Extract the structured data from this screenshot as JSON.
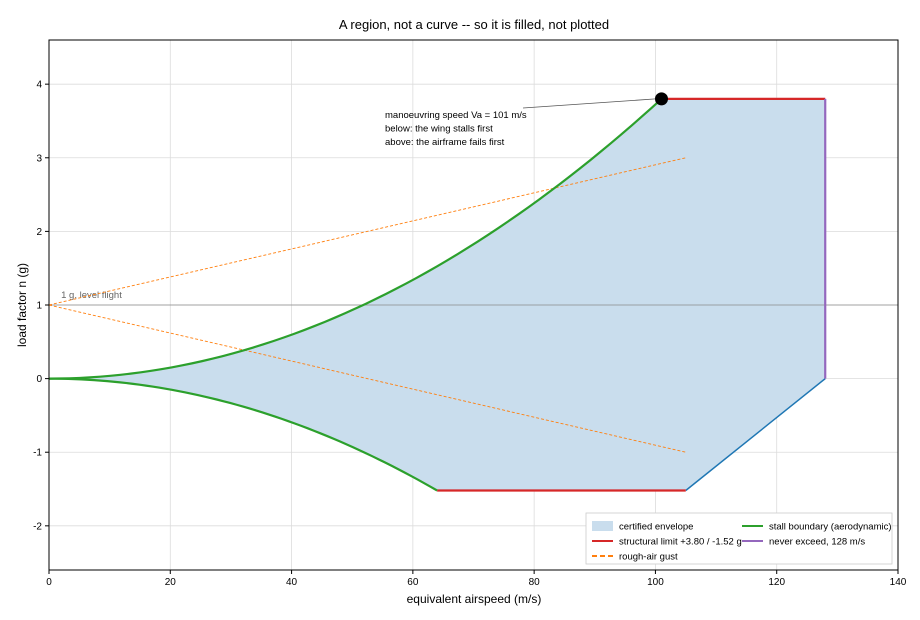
{
  "chart_data": {
    "type": "area",
    "title": "A region, not a curve -- so it is filled, not plotted",
    "xlabel": "equivalent airspeed (m/s)",
    "ylabel": "load factor n (g)",
    "xlim": [
      0,
      140
    ],
    "ylim": [
      -2.6,
      4.6
    ],
    "xticks": [
      0,
      20,
      40,
      60,
      80,
      100,
      120,
      140
    ],
    "yticks": [
      -2,
      -1,
      0,
      1,
      2,
      3,
      4
    ],
    "grid": true,
    "legend_placement": "lower-right",
    "params": {
      "n_pos": 3.8,
      "n_neg": -1.52,
      "va": 101,
      "v_neg_corner": 64,
      "vc": 105,
      "vne": 128
    },
    "series": [
      {
        "key": "envelope",
        "name": "certified envelope",
        "color": "#c9dded"
      },
      {
        "key": "stall",
        "name": "stall boundary (aerodynamic)",
        "color": "#2ca02c"
      },
      {
        "key": "structural",
        "name": "structural limit +3.80 / -1.52 g",
        "color": "#d62728"
      },
      {
        "key": "vne",
        "name": "never exceed, 128 m/s",
        "color": "#9467bd"
      },
      {
        "key": "gust",
        "name": "rough-air gust",
        "color": "#ff7f0e"
      }
    ],
    "gust_lines": [
      {
        "x": [
          0,
          105
        ],
        "y": [
          1,
          3
        ]
      },
      {
        "x": [
          0,
          105
        ],
        "y": [
          1,
          -1
        ]
      }
    ],
    "neg_diagonal": {
      "x": [
        105,
        128
      ],
      "y": [
        -1.52,
        0
      ],
      "color": "#1f77b4"
    },
    "level_flight": {
      "y": 1,
      "label": "1 g, level flight"
    },
    "annotation": {
      "point": [
        101,
        3.8
      ],
      "lines": [
        "manoeuvring speed Va = 101 m/s",
        "below: the wing stalls first",
        "above: the airframe fails first"
      ]
    }
  }
}
